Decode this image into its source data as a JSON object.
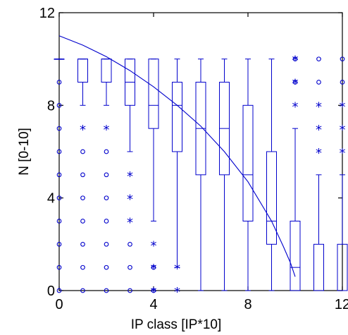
{
  "chart_data": {
    "type": "boxplot",
    "title": "",
    "xlabel": "IP class [IP*10]",
    "ylabel": "N [0-10]",
    "xlim": [
      0,
      12
    ],
    "ylim": [
      0,
      12
    ],
    "xticks": [
      0,
      4,
      8,
      12
    ],
    "yticks": [
      0,
      4,
      8,
      12
    ],
    "grid": false,
    "color": "#0000cc",
    "boxes": [
      {
        "x": 0,
        "min": 10,
        "q1": 10,
        "median": 10,
        "q3": 10,
        "max": 10
      },
      {
        "x": 1,
        "min": 8,
        "q1": 9,
        "median": 10,
        "q3": 10,
        "max": 10
      },
      {
        "x": 2,
        "min": 8,
        "q1": 9,
        "median": 10,
        "q3": 10,
        "max": 10
      },
      {
        "x": 3,
        "min": 6,
        "q1": 8,
        "median": 9,
        "q3": 10,
        "max": 10
      },
      {
        "x": 4,
        "min": 3,
        "q1": 7,
        "median": 8,
        "q3": 10,
        "max": 10
      },
      {
        "x": 5,
        "min": 1,
        "q1": 6,
        "median": 8,
        "q3": 9,
        "max": 10
      },
      {
        "x": 6,
        "min": 0,
        "q1": 5,
        "median": 7,
        "q3": 9,
        "max": 10
      },
      {
        "x": 7,
        "min": 0,
        "q1": 5,
        "median": 7,
        "q3": 9,
        "max": 10
      },
      {
        "x": 8,
        "min": 0,
        "q1": 3,
        "median": 5,
        "q3": 8,
        "max": 10
      },
      {
        "x": 9,
        "min": 0,
        "q1": 2,
        "median": 3,
        "q3": 6,
        "max": 10
      },
      {
        "x": 10,
        "min": 0,
        "q1": 0,
        "median": 1,
        "q3": 3,
        "max": 7
      },
      {
        "x": 11,
        "min": 0,
        "q1": 0,
        "median": 0,
        "q3": 2,
        "max": 5
      },
      {
        "x": 12,
        "min": 0,
        "q1": 0,
        "median": 0,
        "q3": 2,
        "max": 5
      }
    ],
    "outliers_circle": [
      [
        0,
        0
      ],
      [
        0,
        1
      ],
      [
        0,
        2
      ],
      [
        0,
        3
      ],
      [
        0,
        4
      ],
      [
        0,
        5
      ],
      [
        0,
        6
      ],
      [
        0,
        7
      ],
      [
        0,
        8
      ],
      [
        0,
        9
      ],
      [
        1,
        0
      ],
      [
        1,
        1
      ],
      [
        1,
        2
      ],
      [
        1,
        3
      ],
      [
        1,
        4
      ],
      [
        1,
        5
      ],
      [
        1,
        6
      ],
      [
        2,
        0
      ],
      [
        2,
        1
      ],
      [
        2,
        2
      ],
      [
        2,
        3
      ],
      [
        2,
        4
      ],
      [
        2,
        5
      ],
      [
        2,
        6
      ],
      [
        3,
        0
      ],
      [
        3,
        1
      ],
      [
        3,
        2
      ],
      [
        4,
        0
      ],
      [
        4,
        1
      ],
      [
        10,
        9
      ],
      [
        10,
        10
      ],
      [
        11,
        9
      ],
      [
        11,
        10
      ],
      [
        12,
        9
      ],
      [
        12,
        10
      ]
    ],
    "outliers_star": [
      [
        1,
        7
      ],
      [
        2,
        7
      ],
      [
        3,
        3
      ],
      [
        3,
        4
      ],
      [
        3,
        5
      ],
      [
        4,
        0
      ],
      [
        4,
        1
      ],
      [
        4,
        2
      ],
      [
        5,
        0
      ],
      [
        5,
        1
      ],
      [
        10,
        8
      ],
      [
        10,
        9
      ],
      [
        10,
        10
      ],
      [
        11,
        6
      ],
      [
        11,
        7
      ],
      [
        11,
        8
      ],
      [
        12,
        6
      ],
      [
        12,
        7
      ],
      [
        12,
        8
      ]
    ],
    "fit_curve": {
      "x": [
        0,
        1,
        2,
        3,
        4,
        5,
        6,
        7,
        8,
        9,
        9.5,
        9.8,
        10
      ],
      "y": [
        11,
        10.6,
        10.1,
        9.5,
        8.8,
        8.0,
        7.1,
        6.0,
        4.7,
        3.0,
        1.9,
        1.2,
        0.6
      ]
    }
  }
}
